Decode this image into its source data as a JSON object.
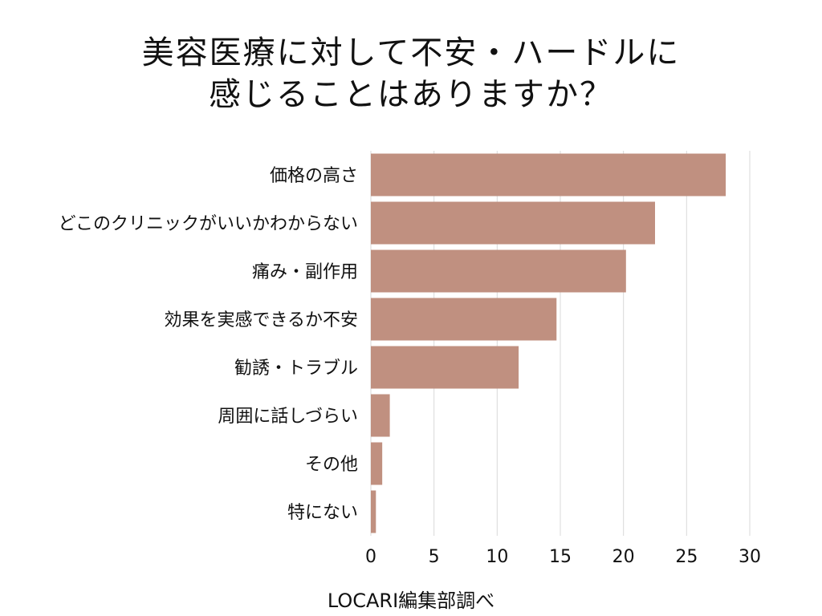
{
  "title_lines": [
    "美容医療に対して不安・ハードルに",
    "感じることはありますか？"
  ],
  "source": "LOCARI編集部調べ",
  "colors": {
    "bar": "#c09080",
    "grid": "#d9d9d9",
    "text": "#111111"
  },
  "chart_data": {
    "type": "bar",
    "orientation": "horizontal",
    "categories": [
      "価格の高さ",
      "どこのクリニックがいいかわからない",
      "痛み・副作用",
      "効果を実感できるか不安",
      "勧誘・トラブル",
      "周囲に話しづらい",
      "その他",
      "特にない"
    ],
    "values": [
      28.1,
      22.5,
      20.2,
      14.7,
      11.7,
      1.5,
      0.9,
      0.4
    ],
    "xlim": [
      0,
      30
    ],
    "xticks": [
      0,
      5,
      10,
      15,
      20,
      25,
      30
    ],
    "grid": true
  }
}
